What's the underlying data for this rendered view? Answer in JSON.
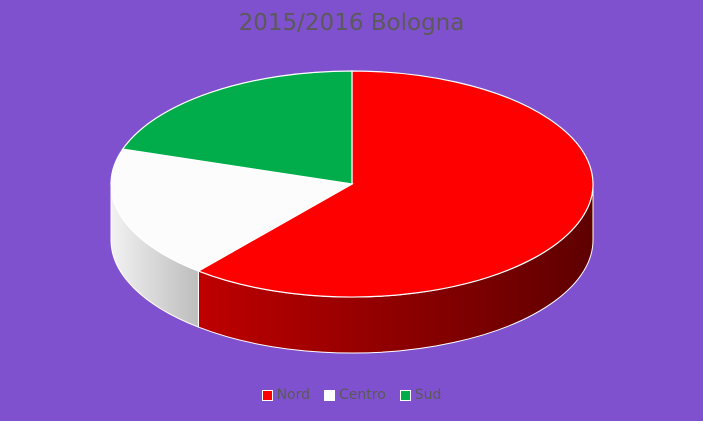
{
  "chart_data": {
    "type": "pie",
    "title": "2015/2016 Bologna",
    "categories": [
      "Nord",
      "Centro",
      "Sud"
    ],
    "values": [
      61,
      19,
      20
    ],
    "colors": [
      "#FF0000",
      "#FCFCFC",
      "#00AD4A"
    ],
    "legend_position": "bottom"
  }
}
